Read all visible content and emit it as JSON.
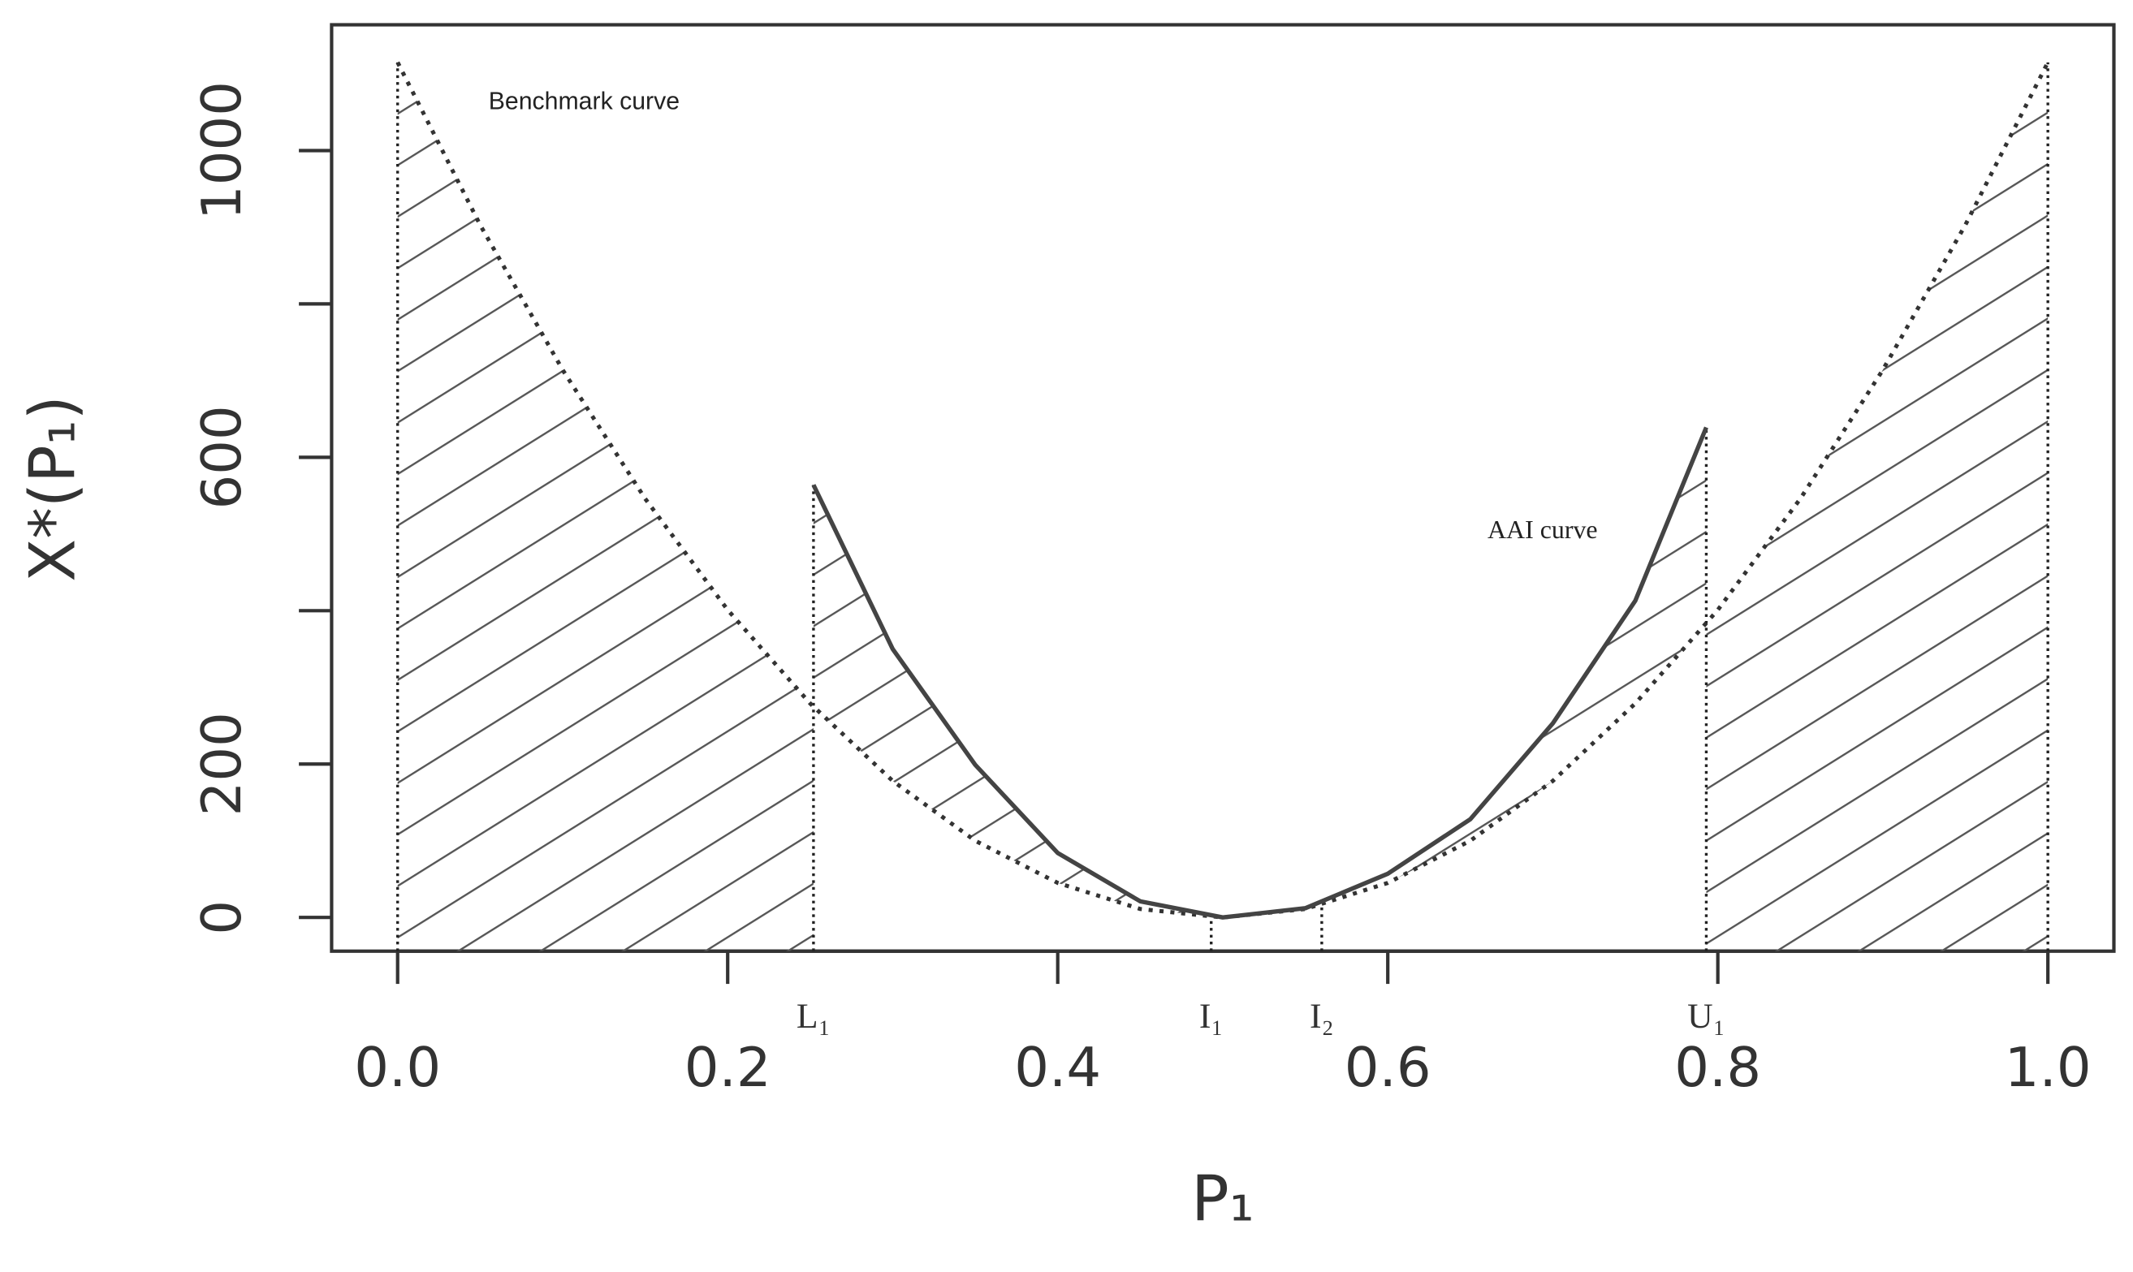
{
  "chart_data": {
    "type": "line",
    "xlabel": "P₁",
    "ylabel": "X*(P₁)",
    "xlim": [
      -0.04,
      1.04
    ],
    "ylim": [
      -44,
      1164
    ],
    "xticks": [
      {
        "value": 0,
        "label": "0.0"
      },
      0.2,
      0.4,
      0.6,
      0.8,
      {
        "value": 1,
        "label": "1.0"
      }
    ],
    "yticks": [
      0,
      200,
      600,
      1000
    ],
    "yminorticks": [
      400,
      800
    ],
    "series": [
      {
        "name": "Benchmark curve",
        "color": "#333333",
        "dash": "dotted",
        "x": [
          0,
          0.05,
          0.1,
          0.15,
          0.2,
          0.25,
          0.3,
          0.35,
          0.4,
          0.45,
          0.5,
          0.55,
          0.6,
          0.65,
          0.7,
          0.75,
          0.8,
          0.85,
          0.9,
          0.95,
          1
        ],
        "values": [
          1115,
          903,
          714,
          546,
          401,
          279,
          178,
          100,
          45,
          11,
          0,
          11,
          45,
          100,
          178,
          279,
          401,
          546,
          714,
          903,
          1115
        ]
      },
      {
        "name": "AAI curve",
        "color": "#444444",
        "dash": "solid",
        "x": [
          0.252,
          0.3,
          0.35,
          0.4,
          0.45,
          0.5,
          0.55,
          0.6,
          0.65,
          0.7,
          0.75,
          0.793
        ],
        "values": [
          564,
          350,
          199,
          84,
          21,
          0,
          12,
          57,
          128,
          253,
          413,
          639
        ]
      }
    ],
    "markers": [
      {
        "label": "L₁",
        "value": 0.252
      },
      {
        "label": "I₁",
        "value": 0.493
      },
      {
        "label": "I₂",
        "value": 0.56
      },
      {
        "label": "U₁",
        "value": 0.793
      }
    ],
    "hatch": true
  }
}
